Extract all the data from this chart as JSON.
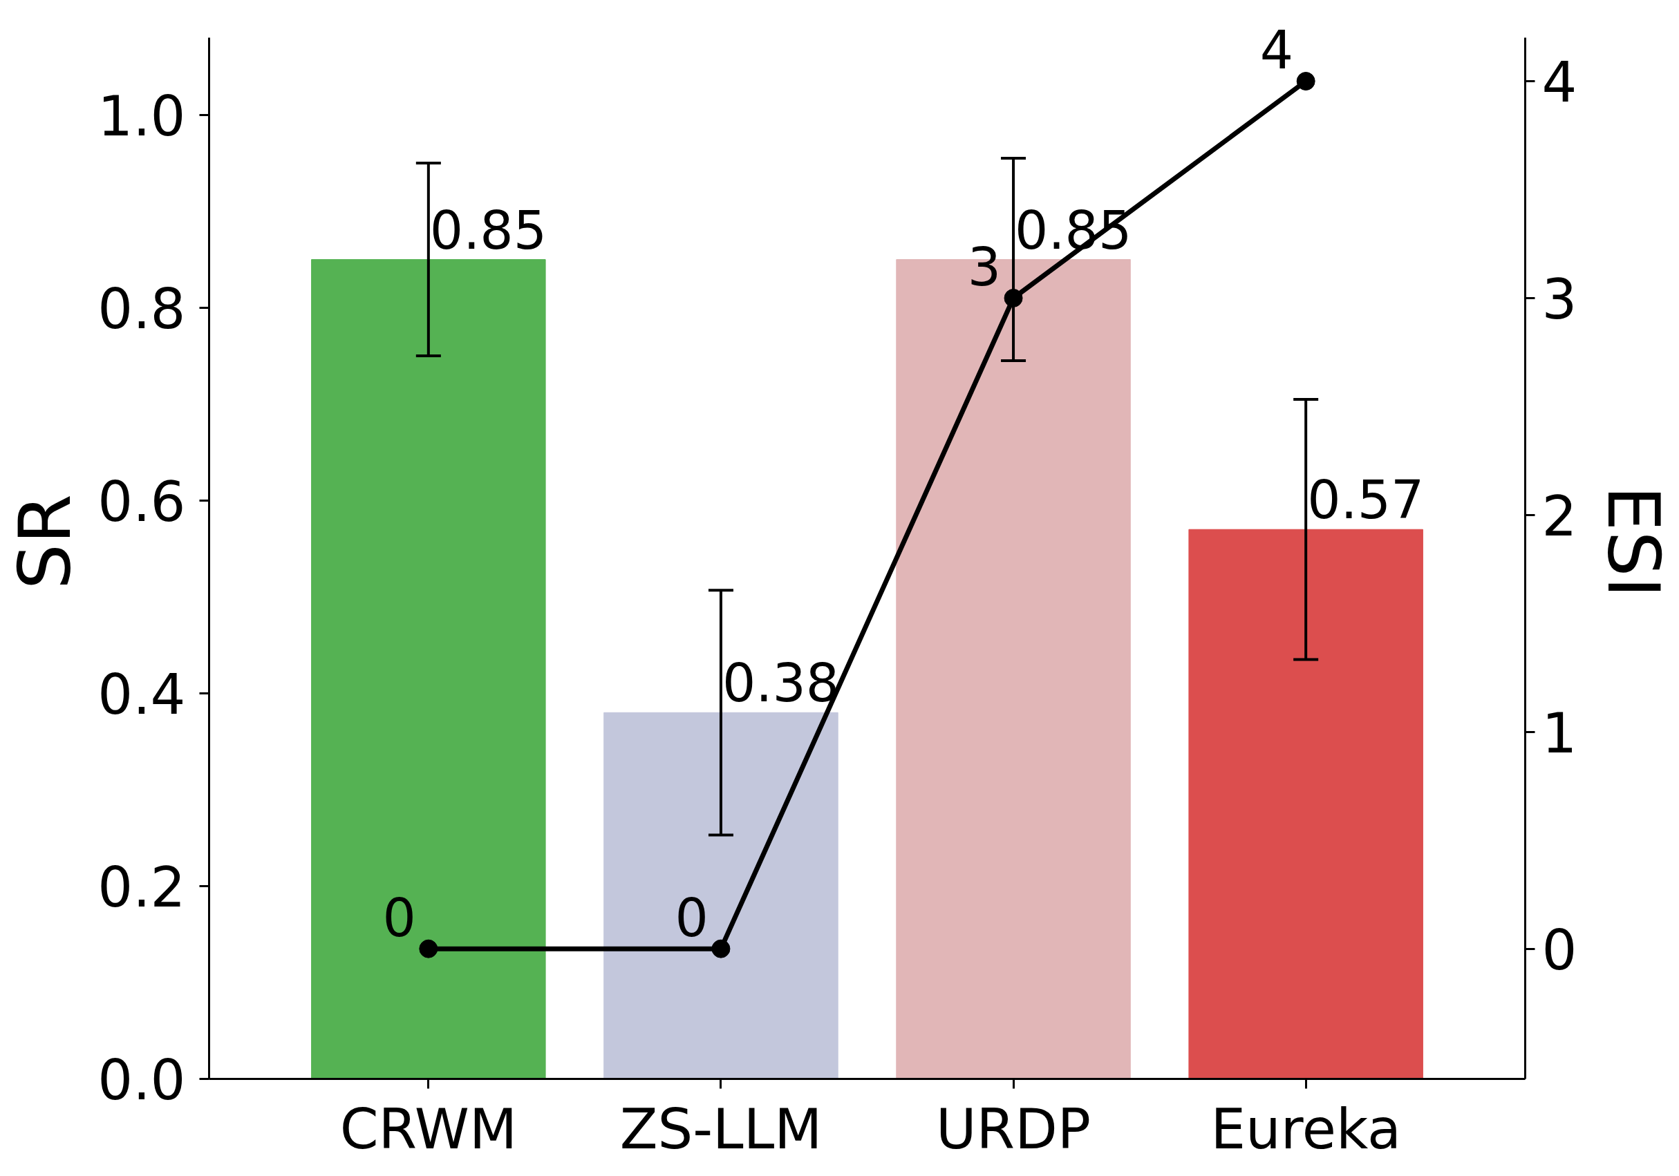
{
  "chart_data": {
    "type": "bar",
    "categories": [
      "CRWM",
      "ZS-LLM",
      "URDP",
      "Eureka"
    ],
    "ylabel": "SR",
    "y2label": "ESI",
    "ylim": [
      0,
      1.08
    ],
    "yticks": [
      {
        "value": 0,
        "label": "0.0"
      },
      0.2,
      0.4,
      0.6,
      0.8,
      {
        "value": 1,
        "label": "1.0"
      }
    ],
    "y2lim": [
      -0.6,
      4.2
    ],
    "y2ticks": [
      0,
      1,
      2,
      3,
      4
    ],
    "data_labels": true,
    "series": [
      {
        "colors": [
          "#55b253",
          "#c3c7dc",
          "#e1b6b7",
          "#dc4e4e"
        ],
        "values": [
          0.85,
          0.38,
          0.85,
          0.57
        ],
        "errors": [
          0.1,
          0.127,
          0.105,
          0.135
        ]
      },
      {
        "type": "line",
        "axis": "y2",
        "color": "#000000",
        "marker": "circle",
        "values": [
          0,
          0,
          3,
          4
        ]
      }
    ]
  }
}
